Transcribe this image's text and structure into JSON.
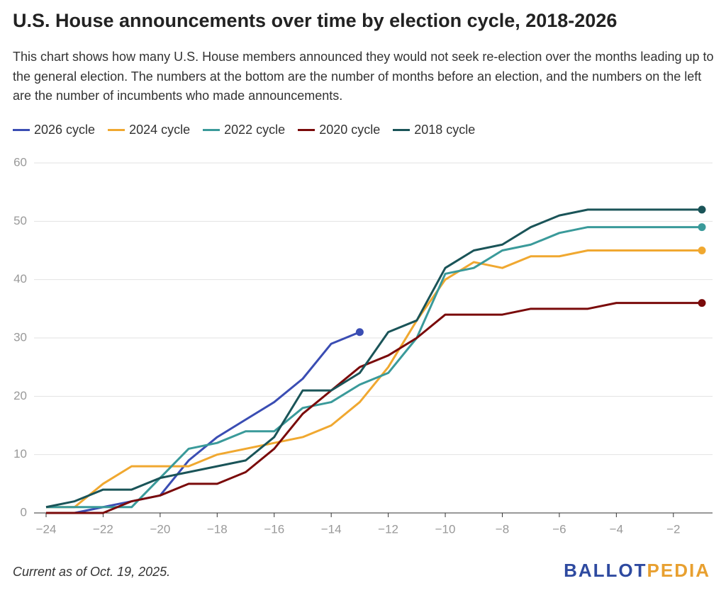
{
  "chart_data": {
    "type": "line",
    "title": "U.S. House announcements over time by election cycle, 2018-2026",
    "subtitle": "This chart shows how many U.S. House members announced they would not seek re-election over the months leading up to the general election. The numbers at the bottom are the number of months before an election, and the numbers on the left are the number of incumbents who made announcements.",
    "note": "Current as of Oct. 19, 2025.",
    "source_logo": [
      "BALLOT",
      "PEDIA"
    ],
    "x": [
      -24,
      -23,
      -22,
      -21,
      -20,
      -19,
      -18,
      -17,
      -16,
      -15,
      -14,
      -13,
      -12,
      -11,
      -10,
      -9,
      -8,
      -7,
      -6,
      -5,
      -4,
      -3,
      -2,
      -1
    ],
    "series": [
      {
        "name": "2026 cycle",
        "color": "#3a4db3",
        "values": [
          0,
          0,
          1,
          2,
          3,
          9,
          13,
          16,
          19,
          23,
          29,
          31,
          null,
          null,
          null,
          null,
          null,
          null,
          null,
          null,
          null,
          null,
          null,
          null
        ]
      },
      {
        "name": "2024 cycle",
        "color": "#f0a830",
        "values": [
          1,
          1,
          5,
          8,
          8,
          8,
          10,
          11,
          12,
          13,
          15,
          19,
          25,
          33,
          40,
          43,
          42,
          44,
          44,
          45,
          45,
          45,
          45,
          45
        ]
      },
      {
        "name": "2022 cycle",
        "color": "#3a9a9a",
        "values": [
          1,
          1,
          1,
          1,
          6,
          11,
          12,
          14,
          14,
          18,
          19,
          22,
          24,
          30,
          41,
          42,
          45,
          46,
          48,
          49,
          49,
          49,
          49,
          49
        ]
      },
      {
        "name": "2020 cycle",
        "color": "#7a0a0a",
        "values": [
          0,
          0,
          0,
          2,
          3,
          5,
          5,
          7,
          11,
          17,
          21,
          25,
          27,
          30,
          34,
          34,
          34,
          35,
          35,
          35,
          36,
          36,
          36,
          36
        ]
      },
      {
        "name": "2018 cycle",
        "color": "#1a5458",
        "values": [
          1,
          2,
          4,
          4,
          6,
          7,
          8,
          9,
          13,
          21,
          21,
          24,
          31,
          33,
          42,
          45,
          46,
          49,
          51,
          52,
          52,
          52,
          52,
          52
        ]
      }
    ],
    "xlim": [
      -24,
      -1
    ],
    "ylim": [
      0,
      60
    ],
    "xticks": [
      {
        "value": -24,
        "label": "−24"
      },
      {
        "value": -22,
        "label": "−22"
      },
      {
        "value": -20,
        "label": "−20"
      },
      {
        "value": -18,
        "label": "−18"
      },
      {
        "value": -16,
        "label": "−16"
      },
      {
        "value": -14,
        "label": "−14"
      },
      {
        "value": -12,
        "label": "−12"
      },
      {
        "value": -10,
        "label": "−10"
      },
      {
        "value": -8,
        "label": "−8"
      },
      {
        "value": -6,
        "label": "−6"
      },
      {
        "value": -4,
        "label": "−4"
      },
      {
        "value": -2,
        "label": "−2"
      }
    ],
    "yticks": [
      0,
      10,
      20,
      30,
      40,
      50,
      60
    ],
    "grid": true
  }
}
